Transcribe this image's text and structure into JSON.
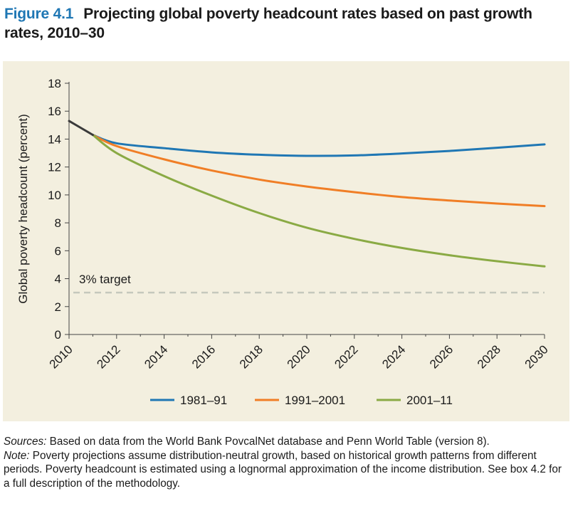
{
  "figure": {
    "number": "Figure 4.1",
    "title": "Projecting global poverty headcount rates based on past growth rates, 2010–30"
  },
  "chart_data": {
    "type": "line",
    "title": "",
    "xlabel": "",
    "ylabel": "Global poverty headcount (percent)",
    "xlim": [
      2010,
      2030
    ],
    "ylim": [
      0,
      18
    ],
    "xticks": [
      2010,
      2012,
      2014,
      2016,
      2018,
      2020,
      2022,
      2024,
      2026,
      2028,
      2030
    ],
    "yticks": [
      0,
      2,
      4,
      6,
      8,
      10,
      12,
      14,
      16,
      18
    ],
    "grid": false,
    "legend_position": "bottom",
    "historical": {
      "color": "#3a3a3a",
      "x": [
        2010,
        2011
      ],
      "y": [
        15.3,
        14.3
      ]
    },
    "series": [
      {
        "name": "1981–91",
        "color": "#1f77b4",
        "x": [
          2011,
          2012,
          2014,
          2016,
          2018,
          2020,
          2022,
          2024,
          2026,
          2028,
          2030
        ],
        "y": [
          14.3,
          13.7,
          13.35,
          13.05,
          12.88,
          12.8,
          12.83,
          12.97,
          13.15,
          13.38,
          13.62
        ]
      },
      {
        "name": "1991–2001",
        "color": "#f07e26",
        "x": [
          2011,
          2012,
          2014,
          2016,
          2018,
          2020,
          2022,
          2024,
          2026,
          2028,
          2030
        ],
        "y": [
          14.3,
          13.5,
          12.55,
          11.75,
          11.1,
          10.6,
          10.2,
          9.85,
          9.6,
          9.38,
          9.2
        ]
      },
      {
        "name": "2001–11",
        "color": "#8aaa44",
        "x": [
          2011,
          2012,
          2014,
          2016,
          2018,
          2020,
          2022,
          2024,
          2026,
          2028,
          2030
        ],
        "y": [
          14.3,
          13.0,
          11.35,
          9.95,
          8.7,
          7.65,
          6.85,
          6.2,
          5.68,
          5.25,
          4.88
        ]
      }
    ],
    "target": {
      "label": "3% target",
      "value": 3,
      "color": "#c5c8bd"
    }
  },
  "notes": {
    "sources_label": "Sources:",
    "sources_text": " Based on data from the World Bank PovcalNet database and Penn World Table (version 8).",
    "note_label": "Note:",
    "note_text": " Poverty projections assume distribution-neutral growth, based on historical growth patterns from different periods. Poverty headcount is estimated using a lognormal approximation of the income distribution. See box 4.2 for a full description of the methodology."
  }
}
